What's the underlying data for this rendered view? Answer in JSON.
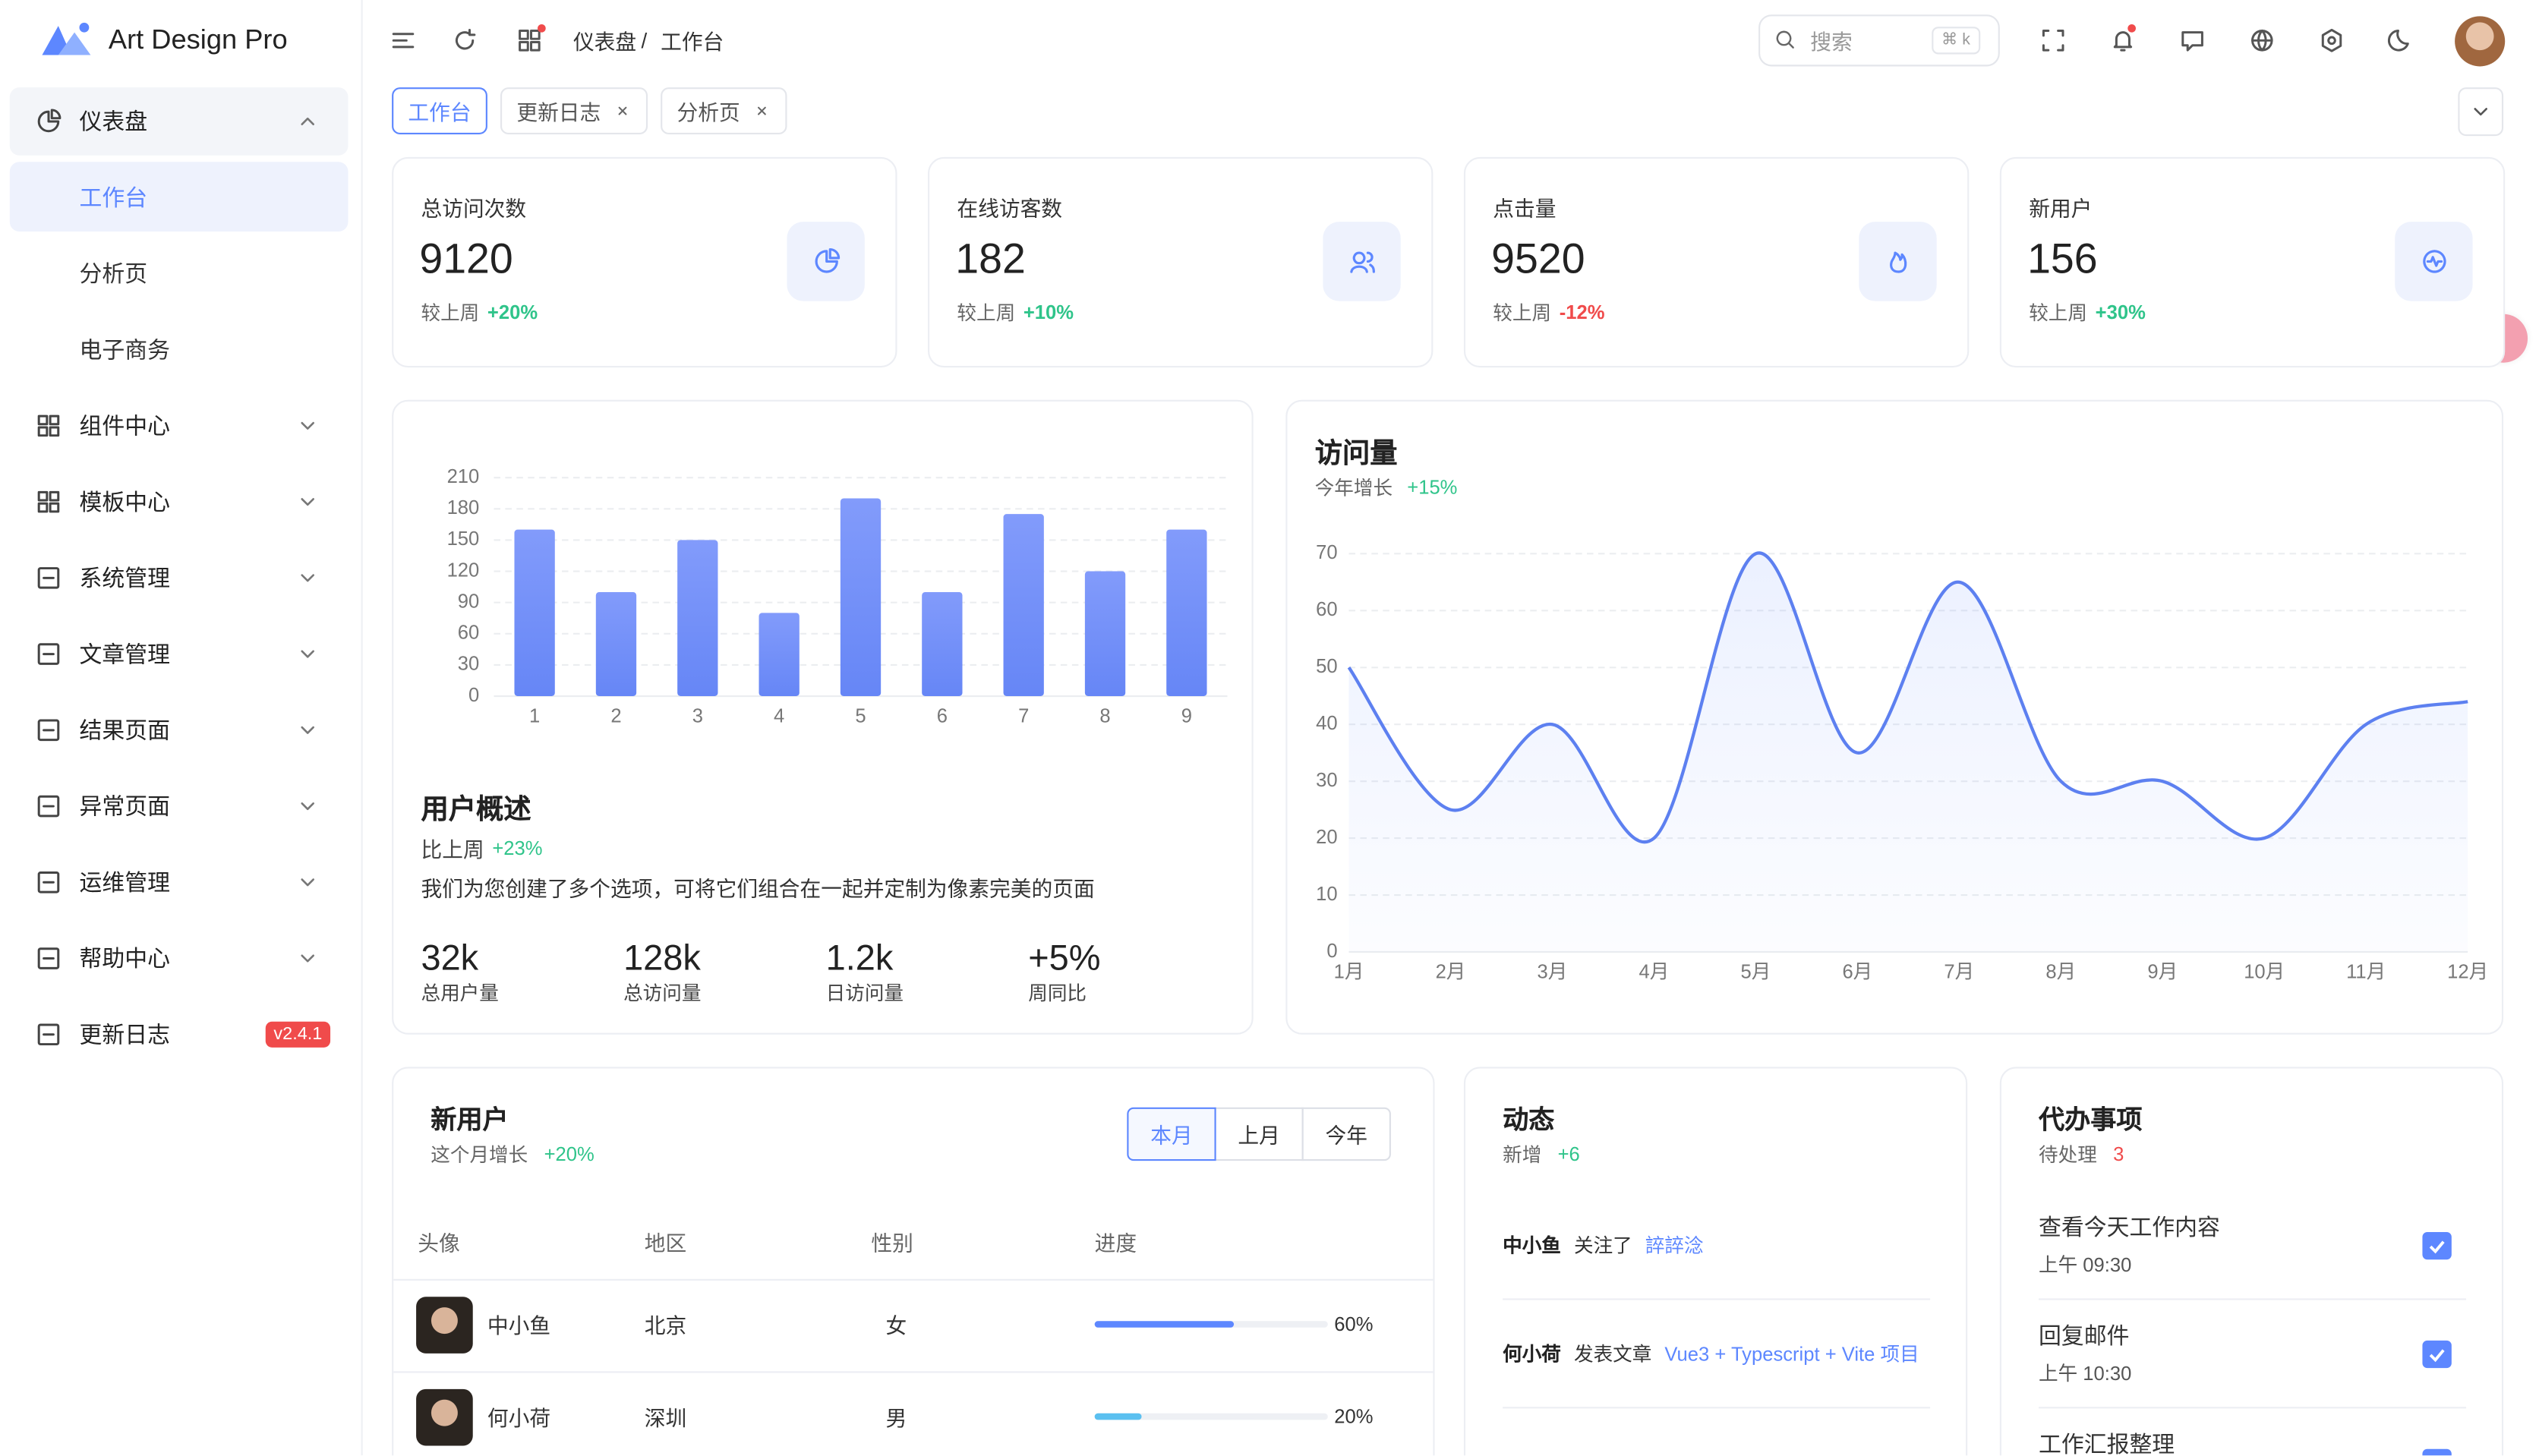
{
  "sidebar": {
    "logo": "Art Design Pro",
    "menu": [
      {
        "label": "仪表盘",
        "children": [
          "工作台",
          "分析页",
          "电子商务"
        ]
      },
      {
        "label": "组件中心"
      },
      {
        "label": "模板中心"
      },
      {
        "label": "系统管理"
      },
      {
        "label": "文章管理"
      },
      {
        "label": "结果页面"
      },
      {
        "label": "异常页面"
      },
      {
        "label": "运维管理"
      },
      {
        "label": "帮助中心"
      },
      {
        "label": "更新日志",
        "badge": "v2.4.1"
      }
    ]
  },
  "header": {
    "breadcrumb": [
      "仪表盘",
      "工作台"
    ],
    "separator": "/",
    "search": "搜索",
    "shortcut": "⌘ k"
  },
  "tabs": [
    "工作台",
    "更新日志",
    "分析页"
  ],
  "stats": [
    {
      "label": "总访问次数",
      "value": 9120,
      "compare": "较上周",
      "change": "+20%"
    },
    {
      "label": "在线访客数",
      "value": 182,
      "compare": "较上周",
      "change": "+10%"
    },
    {
      "label": "点击量",
      "value": 9520,
      "compare": "较上周",
      "change": "-12%"
    },
    {
      "label": "新用户",
      "value": 156,
      "compare": "较上周",
      "change": "+30%"
    }
  ],
  "user_overview": {
    "chart": {
      "type": "bar",
      "categories": [
        "1",
        "2",
        "3",
        "4",
        "5",
        "6",
        "7",
        "8",
        "9"
      ],
      "values": [
        160,
        100,
        150,
        80,
        190,
        100,
        175,
        120,
        160
      ],
      "ylim": [
        0,
        210
      ],
      "yticks": [
        0,
        30,
        60,
        90,
        120,
        150,
        180,
        210
      ],
      "grid": true
    },
    "title": "用户概述",
    "compare": "比上周",
    "change": "+23%",
    "description": "我们为您创建了多个选项，可将它们组合在一起并定制为像素完美的页面",
    "metrics": [
      {
        "value": "32k",
        "label": "总用户量"
      },
      {
        "value": "128k",
        "label": "总访问量"
      },
      {
        "value": "1.2k",
        "label": "日访问量"
      },
      {
        "value": "+5%",
        "label": "周同比"
      }
    ]
  },
  "visits": {
    "title": "访问量",
    "subtitle": "今年增长",
    "change": "+15%",
    "chart": {
      "type": "line",
      "categories": [
        "1月",
        "2月",
        "3月",
        "4月",
        "5月",
        "6月",
        "7月",
        "8月",
        "9月",
        "10月",
        "11月",
        "12月"
      ],
      "values": [
        50,
        25,
        40,
        20,
        70,
        35,
        65,
        30,
        30,
        20,
        40,
        44
      ],
      "ylim": [
        0,
        70
      ],
      "yticks": [
        0,
        10,
        20,
        30,
        40,
        50,
        60,
        70
      ],
      "grid": true
    }
  },
  "new_users": {
    "title": "新用户",
    "subtitle": "这个月增长",
    "change": "+20%",
    "filters": [
      "本月",
      "上月",
      "今年"
    ],
    "columns": [
      "头像",
      "地区",
      "性别",
      "进度"
    ],
    "rows": [
      {
        "name": "中小鱼",
        "region": "北京",
        "gender": "女",
        "progress": 60,
        "progress_label": "60%"
      },
      {
        "name": "何小荷",
        "region": "深圳",
        "gender": "男",
        "progress": 20,
        "progress_label": "20%"
      }
    ]
  },
  "activity": {
    "title": "动态",
    "subtitle": "新增",
    "change": "+6",
    "items": [
      {
        "user": "中小鱼",
        "action": "关注了",
        "target": "誶誶淰"
      },
      {
        "user": "何小荷",
        "action": "发表文章",
        "target": "Vue3 + Typescript + Vite 项目"
      }
    ]
  },
  "todo": {
    "title": "代办事项",
    "subtitle": "待处理",
    "count": 3,
    "items": [
      {
        "text": "查看今天工作内容",
        "time": "上午 09:30"
      },
      {
        "text": "回复邮件",
        "time": "上午 10:30"
      },
      {
        "text": "工作汇报整理"
      }
    ]
  }
}
